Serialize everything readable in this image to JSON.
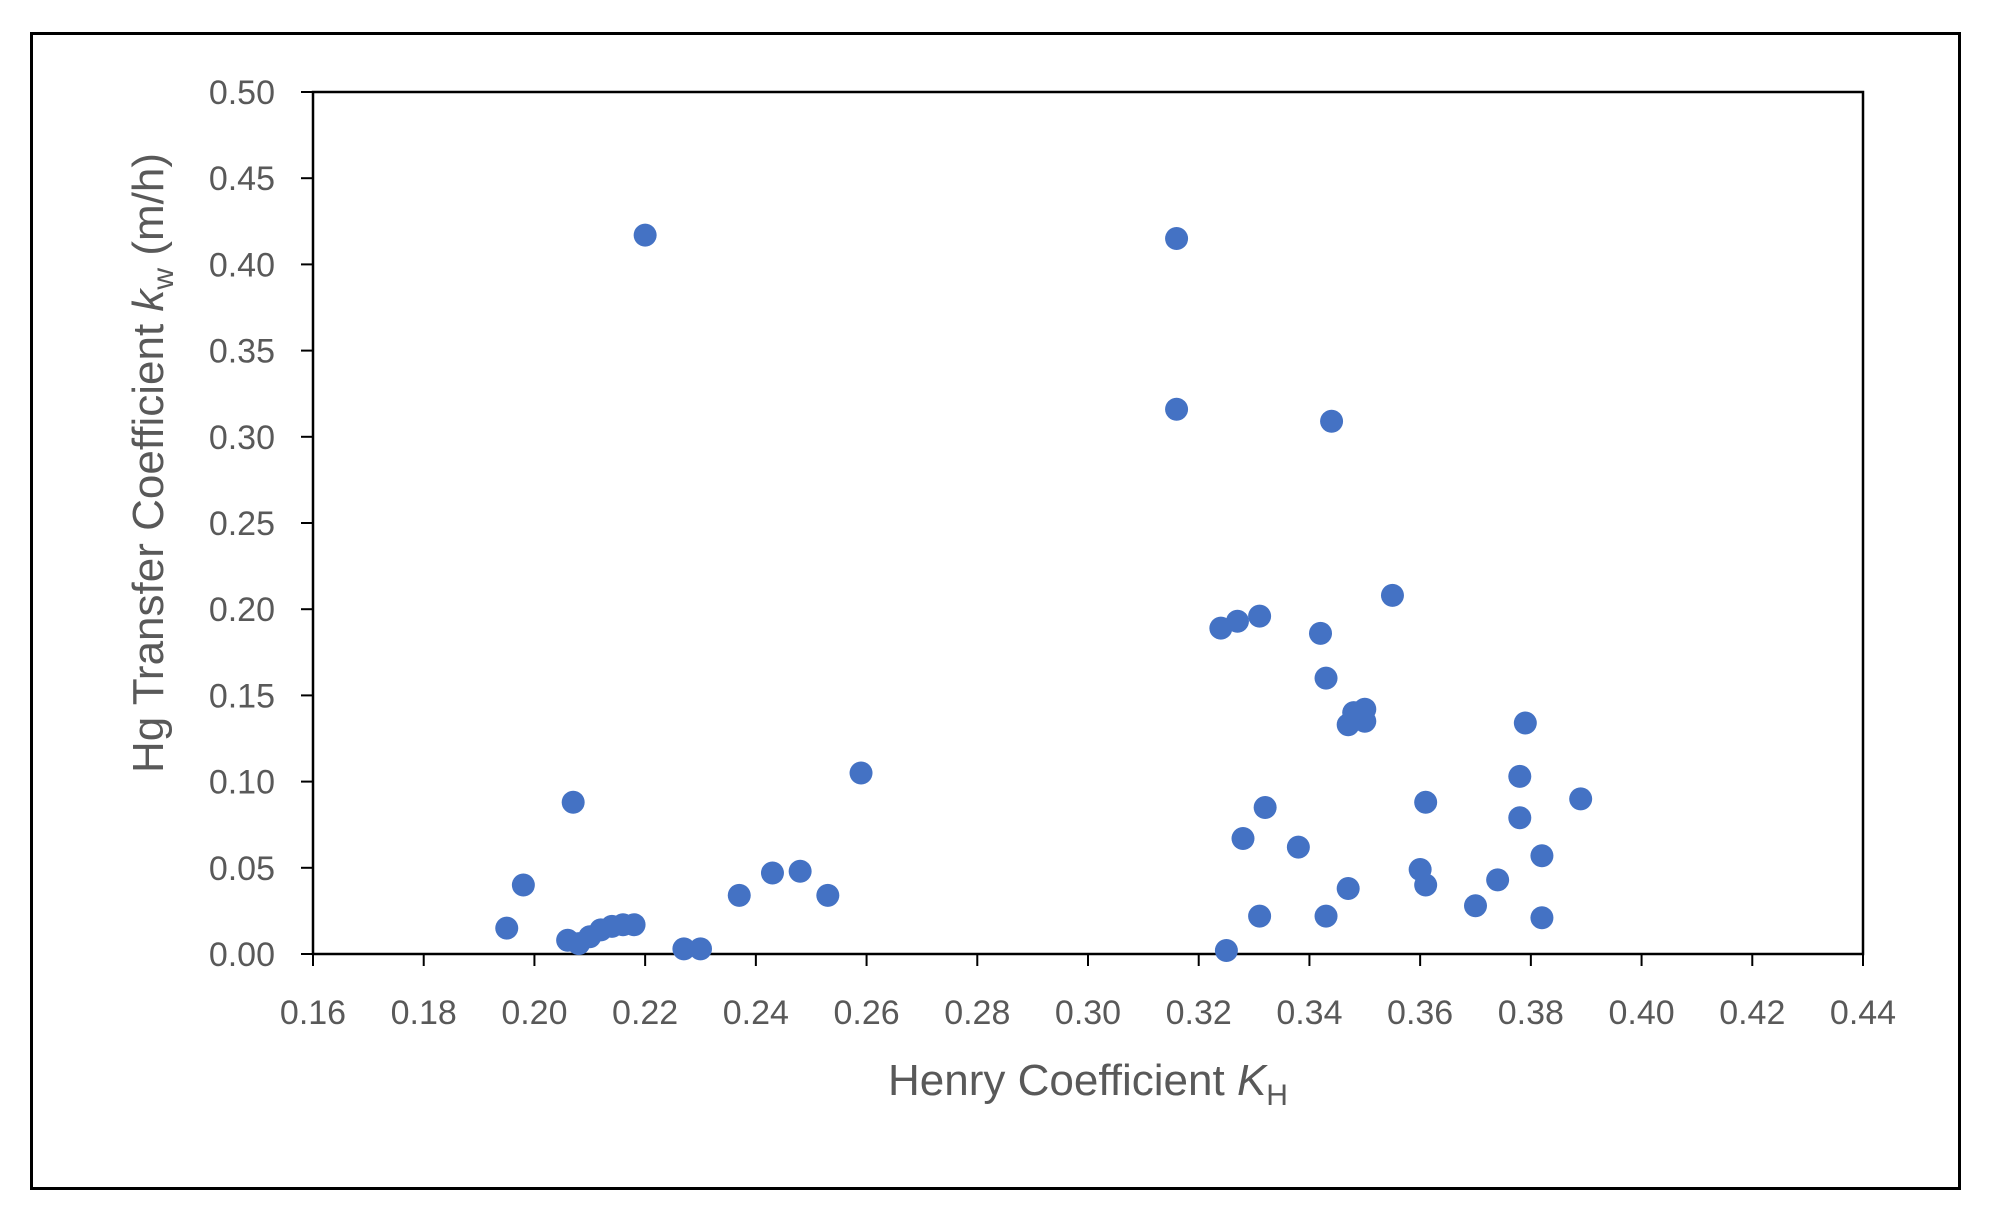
{
  "chart_data": {
    "type": "scatter",
    "title": "",
    "xlabel": {
      "text": "Henry Coefficient ",
      "symbol": "K",
      "subscript": "H"
    },
    "ylabel": {
      "text": "Hg Transfer Coefficient ",
      "symbol": "k",
      "subscript": "w",
      "unit": " (m/h)"
    },
    "xlim": [
      0.16,
      0.44
    ],
    "ylim": [
      0.0,
      0.5
    ],
    "xticks": [
      "0.16",
      "0.18",
      "0.20",
      "0.22",
      "0.24",
      "0.26",
      "0.28",
      "0.30",
      "0.32",
      "0.34",
      "0.36",
      "0.38",
      "0.40",
      "0.42",
      "0.44"
    ],
    "yticks": [
      "0.00",
      "0.05",
      "0.10",
      "0.15",
      "0.20",
      "0.25",
      "0.30",
      "0.35",
      "0.40",
      "0.45",
      "0.50"
    ],
    "grid": false,
    "legend": "none",
    "marker_color": "#4472C4",
    "series": [
      {
        "points": [
          [
            0.195,
            0.015
          ],
          [
            0.198,
            0.04
          ],
          [
            0.206,
            0.008
          ],
          [
            0.207,
            0.088
          ],
          [
            0.208,
            0.006
          ],
          [
            0.21,
            0.01
          ],
          [
            0.212,
            0.014
          ],
          [
            0.214,
            0.016
          ],
          [
            0.216,
            0.017
          ],
          [
            0.218,
            0.017
          ],
          [
            0.22,
            0.417
          ],
          [
            0.227,
            0.003
          ],
          [
            0.23,
            0.003
          ],
          [
            0.237,
            0.034
          ],
          [
            0.243,
            0.047
          ],
          [
            0.248,
            0.048
          ],
          [
            0.253,
            0.034
          ],
          [
            0.259,
            0.105
          ],
          [
            0.316,
            0.316
          ],
          [
            0.316,
            0.415
          ],
          [
            0.324,
            0.189
          ],
          [
            0.325,
            0.002
          ],
          [
            0.327,
            0.193
          ],
          [
            0.328,
            0.067
          ],
          [
            0.331,
            0.196
          ],
          [
            0.331,
            0.022
          ],
          [
            0.332,
            0.085
          ],
          [
            0.338,
            0.062
          ],
          [
            0.342,
            0.186
          ],
          [
            0.343,
            0.16
          ],
          [
            0.343,
            0.022
          ],
          [
            0.344,
            0.309
          ],
          [
            0.347,
            0.038
          ],
          [
            0.347,
            0.133
          ],
          [
            0.348,
            0.14
          ],
          [
            0.35,
            0.135
          ],
          [
            0.35,
            0.142
          ],
          [
            0.355,
            0.208
          ],
          [
            0.36,
            0.049
          ],
          [
            0.361,
            0.04
          ],
          [
            0.361,
            0.088
          ],
          [
            0.37,
            0.028
          ],
          [
            0.374,
            0.043
          ],
          [
            0.378,
            0.079
          ],
          [
            0.378,
            0.103
          ],
          [
            0.379,
            0.134
          ],
          [
            0.382,
            0.021
          ],
          [
            0.382,
            0.057
          ],
          [
            0.389,
            0.09
          ]
        ]
      }
    ]
  }
}
